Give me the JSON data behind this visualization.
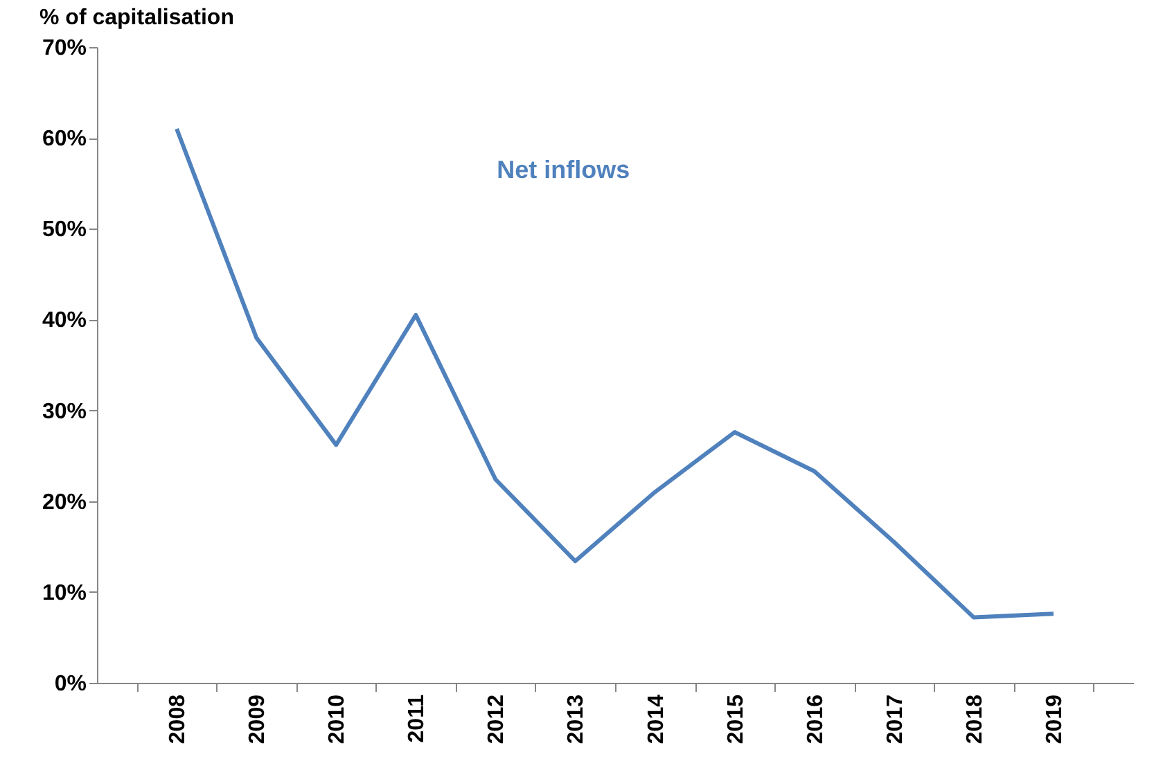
{
  "chart_data": {
    "type": "line",
    "ylabel": "% of capitalisation",
    "categories": [
      "2008",
      "2009",
      "2010",
      "2011",
      "2012",
      "2013",
      "2014",
      "2015",
      "2016",
      "2017",
      "2018",
      "2019"
    ],
    "series": [
      {
        "name": "Net inflows",
        "color": "#4f81bd",
        "values": [
          61,
          38,
          26.2,
          40.5,
          22.4,
          13.4,
          21,
          27.6,
          23.3,
          15.5,
          7.2,
          7.6
        ]
      }
    ],
    "ylim": [
      0,
      70
    ],
    "yticks": [
      {
        "value": 0,
        "label": "0%"
      },
      {
        "value": 10,
        "label": "10%"
      },
      {
        "value": 20,
        "label": "20%"
      },
      {
        "value": 30,
        "label": "30%"
      },
      {
        "value": 40,
        "label": "40%"
      },
      {
        "value": 50,
        "label": "50%"
      },
      {
        "value": 60,
        "label": "60%"
      },
      {
        "value": 70,
        "label": "70%"
      }
    ],
    "grid": false,
    "legend": false,
    "marker": "none",
    "line_style": "solid"
  }
}
